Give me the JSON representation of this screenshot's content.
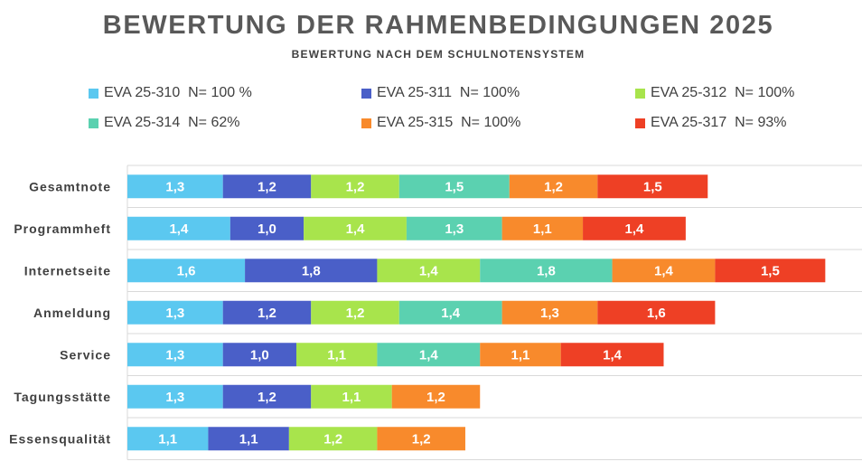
{
  "title": "BEWERTUNG DER RAHMENBEDINGUNGEN 2025",
  "subtitle": "BEWERTUNG NACH DEM SCHULNOTENSYSTEM",
  "chart_data": {
    "type": "bar",
    "orientation": "horizontal",
    "stacked": true,
    "categories": [
      "Gesamtnote",
      "Programmheft",
      "Internetseite",
      "Anmeldung",
      "Service",
      "Tagungsstätte",
      "Essensqualität"
    ],
    "series": [
      {
        "name": "EVA 25-310  N= 100 %",
        "color": "#5bc8f0",
        "values": [
          1.3,
          1.4,
          1.6,
          1.3,
          1.3,
          1.3,
          1.1
        ],
        "labels": [
          "1,3",
          "1,4",
          "1,6",
          "1,3",
          "1,3",
          "1,3",
          "1,1"
        ]
      },
      {
        "name": "EVA 25-311  N= 100%",
        "color": "#4a5fc8",
        "values": [
          1.2,
          1.0,
          1.8,
          1.2,
          1.0,
          1.2,
          1.1
        ],
        "labels": [
          "1,2",
          "1,0",
          "1,8",
          "1,2",
          "1,0",
          "1,2",
          "1,1"
        ]
      },
      {
        "name": "EVA 25-312  N= 100%",
        "color": "#a8e44c",
        "values": [
          1.2,
          1.4,
          1.4,
          1.2,
          1.1,
          1.1,
          1.2
        ],
        "labels": [
          "1,2",
          "1,4",
          "1,4",
          "1,2",
          "1,1",
          "1,1",
          "1,2"
        ]
      },
      {
        "name": "EVA 25-314  N= 62%",
        "color": "#5bd1b0",
        "values": [
          1.5,
          1.3,
          1.8,
          1.4,
          1.4,
          null,
          null
        ],
        "labels": [
          "1,5",
          "1,3",
          "1,8",
          "1,4",
          "1,4",
          "",
          ""
        ]
      },
      {
        "name": "EVA 25-315  N= 100%",
        "color": "#f88a2c",
        "values": [
          1.2,
          1.1,
          1.4,
          1.3,
          1.1,
          1.2,
          1.2
        ],
        "labels": [
          "1,2",
          "1,1",
          "1,4",
          "1,3",
          "1,1",
          "1,2",
          "1,2"
        ]
      },
      {
        "name": "EVA 25-317  N= 93%",
        "color": "#ee4025",
        "values": [
          1.5,
          1.4,
          1.5,
          1.6,
          1.4,
          null,
          null
        ],
        "labels": [
          "1,5",
          "1,4",
          "1,5",
          "1,6",
          "1,4",
          "",
          ""
        ]
      }
    ],
    "xlim": [
      0,
      10
    ],
    "grid": true,
    "legend_position": "top"
  }
}
